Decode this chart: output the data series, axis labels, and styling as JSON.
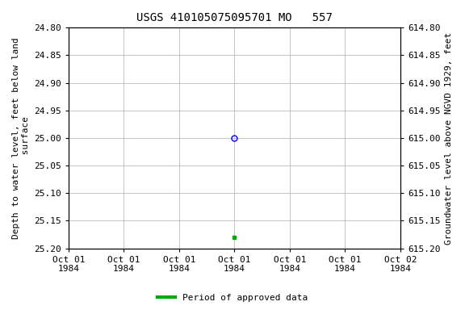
{
  "title": "USGS 410105075095701 MO   557",
  "ylabel_left": "Depth to water level, feet below land\n surface",
  "ylabel_right": "Groundwater level above NGVD 1929, feet",
  "ylim_left": [
    24.8,
    25.2
  ],
  "ylim_right": [
    615.2,
    614.8
  ],
  "yticks_left": [
    24.8,
    24.85,
    24.9,
    24.95,
    25.0,
    25.05,
    25.1,
    25.15,
    25.2
  ],
  "yticks_right": [
    615.2,
    615.15,
    615.1,
    615.05,
    615.0,
    614.95,
    614.9,
    614.85,
    614.8
  ],
  "x_tick_hours": [
    0,
    4,
    8,
    12,
    16,
    20,
    24
  ],
  "x_tick_labels": [
    "Oct 01\n1984",
    "Oct 01\n1984",
    "Oct 01\n1984",
    "Oct 01\n1984",
    "Oct 01\n1984",
    "Oct 01\n1984",
    "Oct 02\n1984"
  ],
  "x_min_hour": 0,
  "x_max_hour": 24,
  "data_open_hour": 12,
  "data_open_y": 25.0,
  "data_open_color": "blue",
  "data_approved_hour": 12,
  "data_approved_y": 25.18,
  "data_approved_color": "#00aa00",
  "legend_label": "Period of approved data",
  "legend_color": "#00aa00",
  "background_color": "#ffffff",
  "grid_color": "#bbbbbb",
  "title_fontsize": 10,
  "label_fontsize": 8,
  "tick_fontsize": 8
}
